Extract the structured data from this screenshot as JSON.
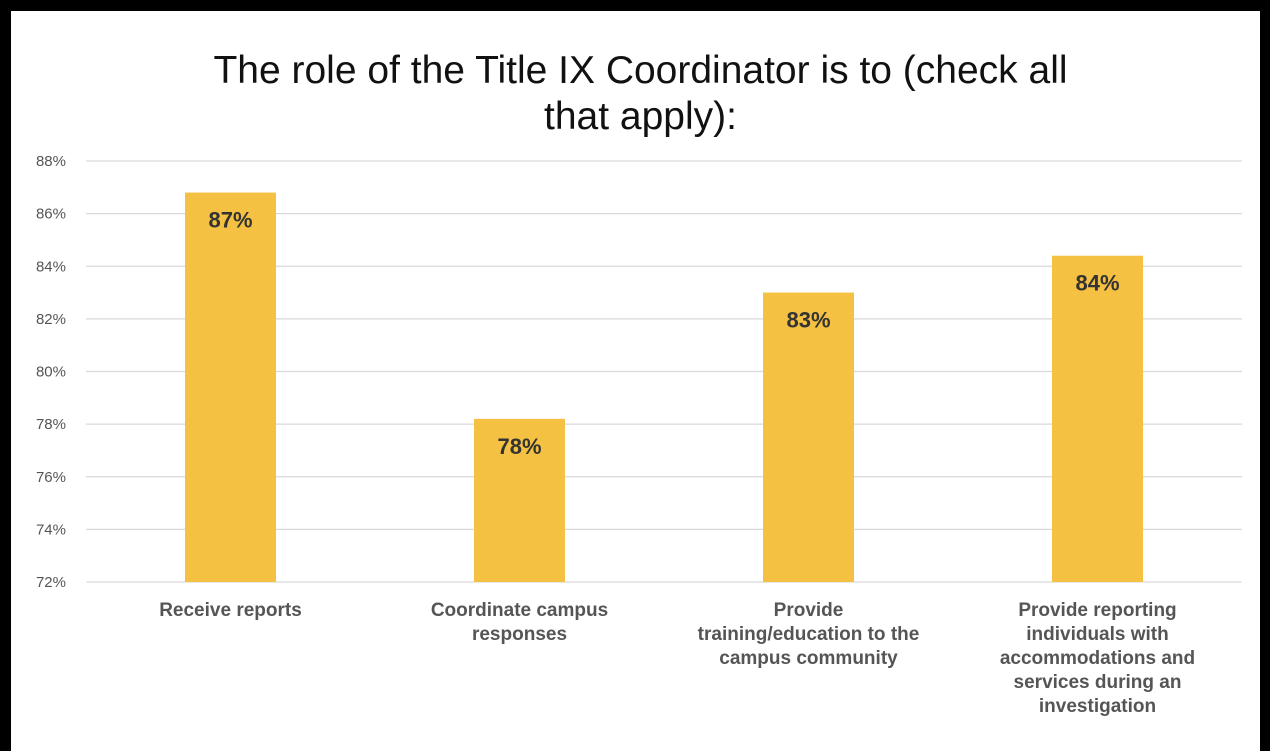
{
  "chart_data": {
    "type": "bar",
    "title": "The role of the Title IX Coordinator is to (check all that apply):",
    "title_lines": [
      "The role of the Title IX Coordinator is to (check all",
      "that apply):"
    ],
    "xlabel": "",
    "ylabel": "",
    "categories": [
      "Receive reports",
      "Coordinate campus responses",
      "Provide training/education to the campus community",
      "Provide reporting individuals with accommodations and services during an investigation"
    ],
    "category_label_lines": [
      [
        "Receive reports"
      ],
      [
        "Coordinate campus",
        "responses"
      ],
      [
        "Provide",
        "training/education to the",
        "campus community"
      ],
      [
        "Provide reporting",
        "individuals with",
        "accommodations and",
        "services during an",
        "investigation"
      ]
    ],
    "values": [
      86.8,
      78.2,
      83.0,
      84.4
    ],
    "data_labels": [
      "87%",
      "78%",
      "83%",
      "84%"
    ],
    "ylim": [
      72,
      88
    ],
    "yticks": [
      72,
      74,
      76,
      78,
      80,
      82,
      84,
      86,
      88
    ],
    "ytick_labels": [
      "72%",
      "74%",
      "76%",
      "78%",
      "80%",
      "82%",
      "84%",
      "86%",
      "88%"
    ],
    "grid": true,
    "legend": "none",
    "colors": {
      "bar": "#F4C142",
      "grid": "#D9D9D9",
      "tick_text": "#555555",
      "data_label_text": "#333333",
      "category_text": "#555555",
      "title_text": "#111111",
      "frame": "#000000",
      "background": "#FFFFFF"
    }
  }
}
